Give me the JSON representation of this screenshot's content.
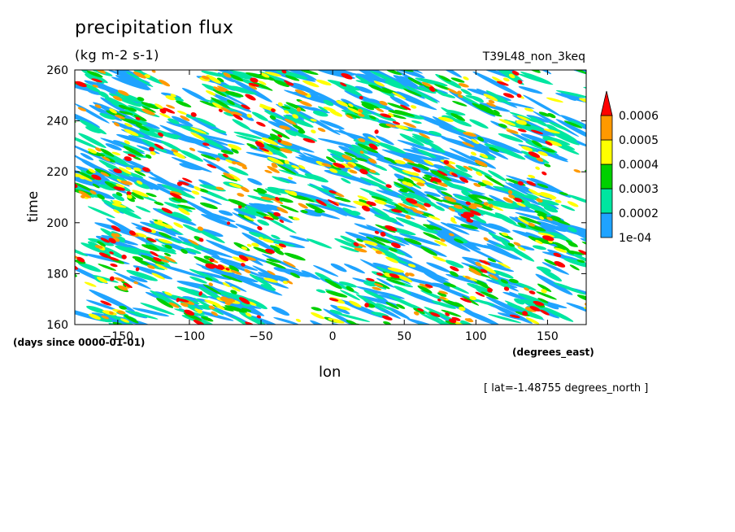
{
  "chart_data": {
    "type": "heatmap",
    "title": "precipitation flux",
    "units": "(kg m-2 s-1)",
    "run_label": "T39L48_non_3keq",
    "ylabel": "time",
    "ylabel_units": "(days since 0000-01-01)",
    "xlabel": "lon",
    "xlabel_units": "(degrees_east)",
    "footnote": "[ lat=-1.48755 degrees_north ]",
    "xlim": [
      -180,
      177
    ],
    "ylim": [
      160,
      260
    ],
    "xticks": [
      -150,
      -100,
      -50,
      0,
      50,
      100,
      150
    ],
    "yticks": [
      160,
      180,
      200,
      220,
      240,
      260
    ],
    "legend": {
      "position": "right",
      "levels": [
        "1e-04",
        "0.0002",
        "0.0003",
        "0.0004",
        "0.0005",
        "0.0006"
      ],
      "colors": [
        "#1fa3ff",
        "#00e6a0",
        "#00d000",
        "#ffff00",
        "#ff9900",
        "#ff0000"
      ]
    }
  }
}
